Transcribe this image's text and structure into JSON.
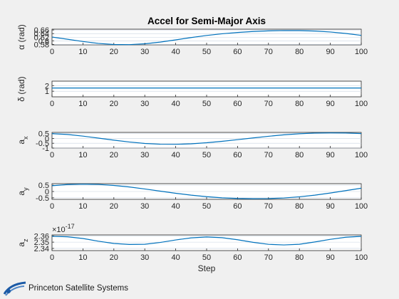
{
  "figure": {
    "background": "#f0f0f0",
    "series_color": "#0072BD",
    "logo_color": "#1b5aa6"
  },
  "logo": {
    "text": "Princeton Satellite Systems"
  },
  "chart_data": [
    {
      "type": "line",
      "title": "Accel for Semi-Major Axis",
      "ylabel": "α (rad)",
      "xlabel": "",
      "xlim": [
        0,
        100
      ],
      "ylim": [
        0.5776,
        0.6644
      ],
      "xticks": [
        0,
        10,
        20,
        30,
        40,
        50,
        60,
        70,
        80,
        90,
        100
      ],
      "yticks": [
        0.58,
        0.6,
        0.62,
        0.64,
        0.66
      ],
      "ytick_labels": [
        "0.58",
        "0.6",
        "0.62",
        "0.64",
        "0.66"
      ],
      "exponent_label": "",
      "grid": "y",
      "series": [
        {
          "x": [
            0,
            5,
            10,
            15,
            20,
            25,
            30,
            35,
            40,
            45,
            50,
            55,
            60,
            65,
            70,
            75,
            80,
            85,
            90,
            95,
            100
          ],
          "values": [
            0.6207,
            0.6086,
            0.5961,
            0.5858,
            0.5796,
            0.5788,
            0.5835,
            0.5929,
            0.6052,
            0.6181,
            0.6297,
            0.6391,
            0.6463,
            0.6516,
            0.6551,
            0.6568,
            0.6566,
            0.6541,
            0.6488,
            0.6408,
            0.6302
          ]
        }
      ]
    },
    {
      "type": "line",
      "title": "",
      "ylabel": "δ (rad)",
      "xlabel": "",
      "xlim": [
        0,
        100
      ],
      "ylim": [
        0,
        2.8
      ],
      "xticks": [
        0,
        10,
        20,
        30,
        40,
        50,
        60,
        70,
        80,
        90,
        100
      ],
      "yticks": [
        1,
        2
      ],
      "ytick_labels": [
        "1",
        "2"
      ],
      "exponent_label": "",
      "grid": "y",
      "series": [
        {
          "x": [
            0,
            100
          ],
          "values": [
            1.5708,
            1.5708
          ]
        }
      ]
    },
    {
      "type": "line",
      "title": "",
      "ylabel": "a",
      "ylabel_sub": "x",
      "xlabel": "",
      "xlim": [
        0,
        100
      ],
      "ylim": [
        -1,
        0.62
      ],
      "xticks": [
        0,
        10,
        20,
        30,
        40,
        50,
        60,
        70,
        80,
        90,
        100
      ],
      "yticks": [
        -1,
        -0.5,
        0,
        0.5
      ],
      "ytick_labels": [
        "-1",
        "-0.5",
        "0",
        "0.5"
      ],
      "exponent_label": "",
      "grid": "y",
      "series": [
        {
          "x": [
            0,
            5,
            10,
            15,
            20,
            25,
            30,
            35,
            40,
            45,
            50,
            55,
            60,
            65,
            70,
            75,
            80,
            85,
            90,
            95,
            100
          ],
          "values": [
            0.49,
            0.41,
            0.24,
            0.03,
            -0.18,
            -0.37,
            -0.52,
            -0.6,
            -0.61,
            -0.56,
            -0.45,
            -0.3,
            -0.13,
            0.05,
            0.22,
            0.37,
            0.48,
            0.55,
            0.57,
            0.56,
            0.5
          ]
        }
      ]
    },
    {
      "type": "line",
      "title": "",
      "ylabel": "a",
      "ylabel_sub": "y",
      "xlabel": "",
      "xlim": [
        0,
        100
      ],
      "ylim": [
        -0.62,
        0.62
      ],
      "xticks": [
        0,
        10,
        20,
        30,
        40,
        50,
        60,
        70,
        80,
        90,
        100
      ],
      "yticks": [
        -0.5,
        0,
        0.5
      ],
      "ytick_labels": [
        "-0.5",
        "0",
        "0.5"
      ],
      "exponent_label": "",
      "grid": "y",
      "series": [
        {
          "x": [
            0,
            5,
            10,
            15,
            20,
            25,
            30,
            35,
            40,
            45,
            50,
            55,
            60,
            65,
            70,
            75,
            80,
            85,
            90,
            95,
            100
          ],
          "values": [
            0.46,
            0.55,
            0.58,
            0.56,
            0.48,
            0.36,
            0.2,
            0.03,
            -0.14,
            -0.29,
            -0.41,
            -0.5,
            -0.55,
            -0.57,
            -0.56,
            -0.51,
            -0.42,
            -0.29,
            -0.12,
            0.07,
            0.26
          ]
        }
      ]
    },
    {
      "type": "line",
      "title": "",
      "ylabel": "a",
      "ylabel_sub": "z",
      "xlabel": "Step",
      "xlim": [
        0,
        100
      ],
      "ylim": [
        2.3365,
        2.3615
      ],
      "xticks": [
        0,
        10,
        20,
        30,
        40,
        50,
        60,
        70,
        80,
        90,
        100
      ],
      "yticks": [
        2.34,
        2.35,
        2.36
      ],
      "ytick_labels": [
        "2.34",
        "2.35",
        "2.36"
      ],
      "exponent_label": "×10",
      "exponent_power": "-17",
      "grid": "y",
      "series": [
        {
          "x": [
            0,
            5,
            10,
            15,
            20,
            25,
            30,
            35,
            40,
            45,
            50,
            55,
            60,
            65,
            70,
            75,
            80,
            85,
            90,
            95,
            100
          ],
          "values": [
            2.3593,
            2.3585,
            2.3558,
            2.3515,
            2.3479,
            2.3463,
            2.3466,
            2.3495,
            2.3535,
            2.3568,
            2.3582,
            2.3571,
            2.3538,
            2.3497,
            2.3465,
            2.3455,
            2.3466,
            2.3503,
            2.3545,
            2.3578,
            2.3592
          ]
        }
      ]
    }
  ]
}
